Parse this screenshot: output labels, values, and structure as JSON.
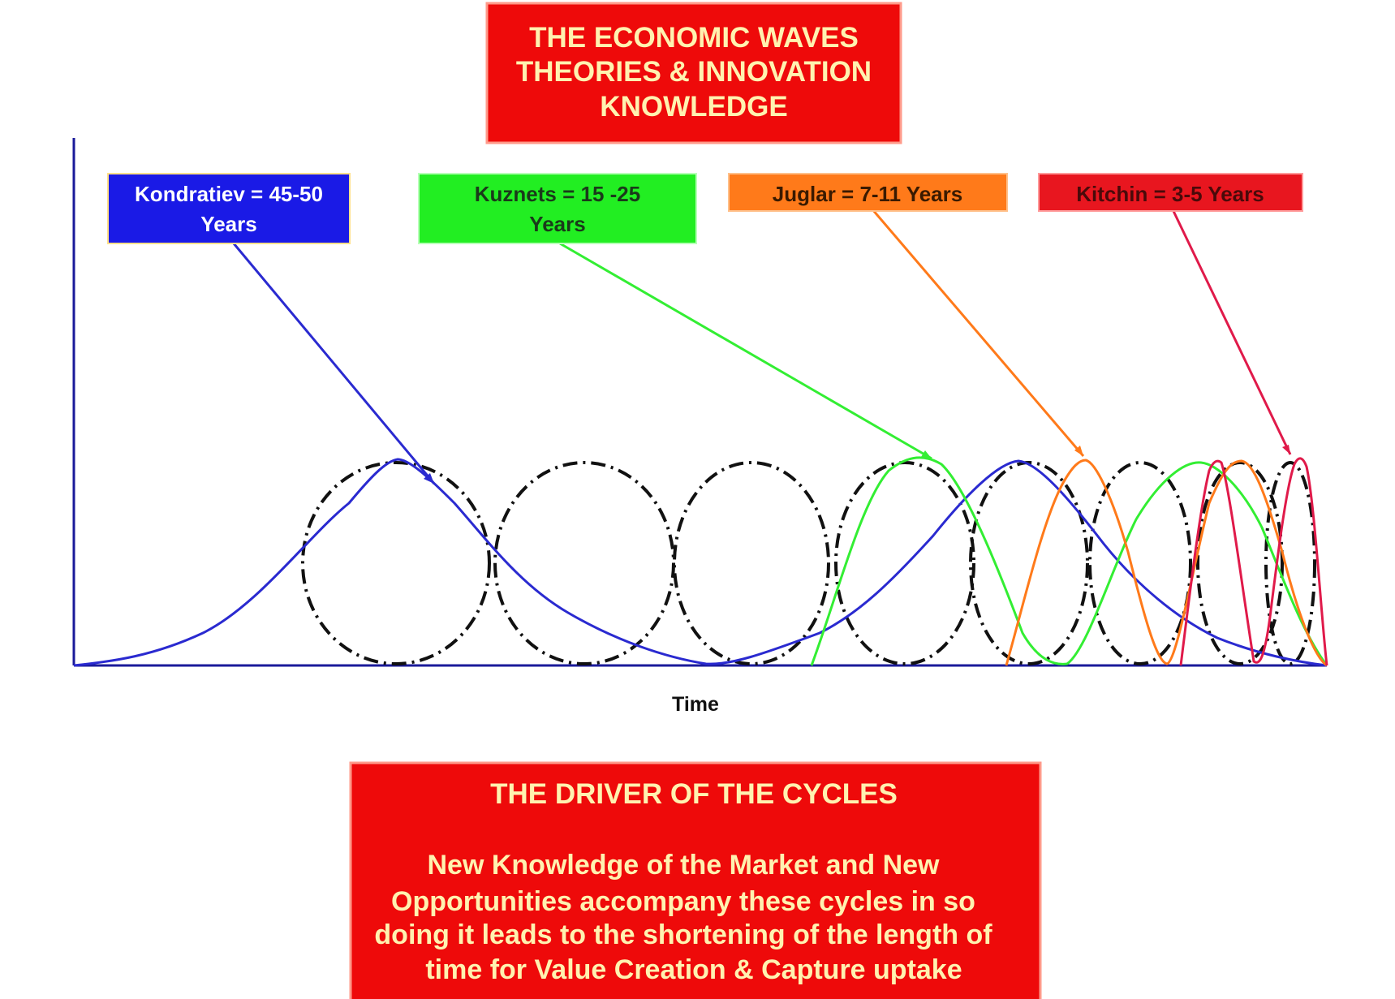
{
  "title": {
    "lines": [
      "THE ECONOMIC WAVES",
      "THEORIES & INNOVATION",
      "KNOWLEDGE"
    ]
  },
  "waves": [
    {
      "key": "kondratiev",
      "lines": [
        "Kondratiev  = 45-50",
        "Years"
      ],
      "box_color": "#1a1ae6",
      "text_color": "#ffffff",
      "line_color": "#2a2ad0"
    },
    {
      "key": "kuznets",
      "lines": [
        "Kuznets  = 15 -25",
        "Years"
      ],
      "box_color": "#22ee22",
      "text_color": "#1a3a1a",
      "line_color": "#33ee33"
    },
    {
      "key": "juglar",
      "lines": [
        "Juglar  = 7-11 Years"
      ],
      "box_color": "#ff7a1a",
      "text_color": "#3a1a00",
      "line_color": "#ff7a1a"
    },
    {
      "key": "kitchin",
      "lines": [
        "Kitchin = 3-5 Years"
      ],
      "box_color": "#e8161f",
      "text_color": "#4a0a0a",
      "line_color": "#e01a4a"
    }
  ],
  "axis": {
    "x_label": "Time"
  },
  "driver": {
    "heading": "THE DRIVER OF THE CYCLES",
    "body_lines": [
      "New Knowledge of the Market and New",
      "Opportunities accompany these cycles in so",
      "doing it leads to the shortening of the length of",
      "time for Value Creation    & Capture uptake"
    ]
  },
  "colors": {
    "panel_red": "#ee0a0a",
    "panel_border": "#ff9a8a",
    "axis": "#1a1a9a",
    "dashed_circles": "#111111"
  }
}
